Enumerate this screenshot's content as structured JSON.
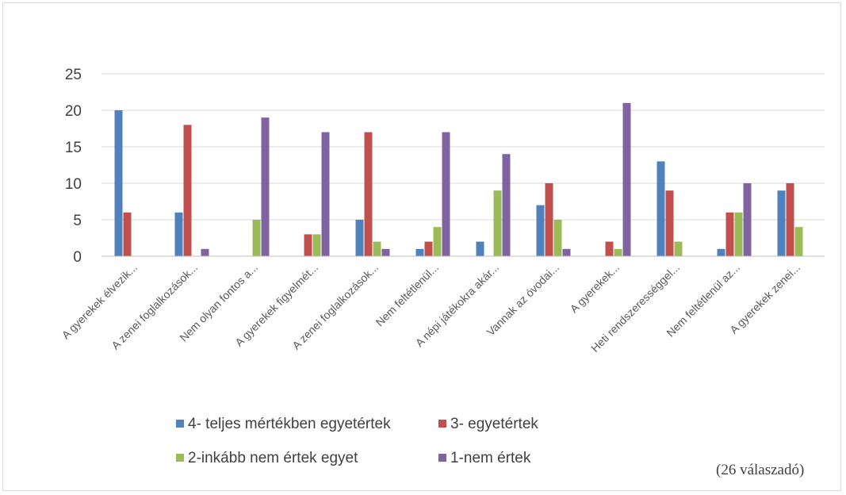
{
  "chart_data": {
    "type": "bar",
    "title": "",
    "xlabel": "",
    "ylabel": "",
    "ylim": [
      0,
      25
    ],
    "yticks": [
      0,
      5,
      10,
      15,
      20,
      25
    ],
    "grid": true,
    "legend_position": "bottom",
    "categories": [
      "A gyerekek élvezik...",
      "A zenei foglalkozások...",
      "Nem olyan fontos a...",
      "A gyerekek figyelmét...",
      "A zenei foglalkozások...",
      "Nem feltétlenül...",
      "A népi játékokra akár...",
      "Vannak az óvodai...",
      "A gyerekek...",
      "Heti rendszerességgel...",
      "Nem feltétlenül az...",
      "A gyerekek zenei..."
    ],
    "series": [
      {
        "name": "4- teljes mértékben egyetértek",
        "color": "#4f81bd",
        "values": [
          20,
          6,
          0,
          0,
          5,
          1,
          2,
          7,
          0,
          13,
          1,
          9
        ]
      },
      {
        "name": "3- egyetértek",
        "color": "#c0504d",
        "values": [
          6,
          18,
          0,
          3,
          17,
          2,
          0,
          10,
          2,
          9,
          6,
          10
        ]
      },
      {
        "name": "2-inkább nem értek egyet",
        "color": "#9bbb59",
        "values": [
          0,
          0,
          5,
          3,
          2,
          4,
          9,
          5,
          1,
          2,
          6,
          4
        ]
      },
      {
        "name": "1-nem értek",
        "color": "#8064a2",
        "values": [
          0,
          1,
          19,
          17,
          1,
          17,
          14,
          1,
          21,
          0,
          10,
          0
        ]
      }
    ]
  },
  "note": "(26 válaszadó)"
}
